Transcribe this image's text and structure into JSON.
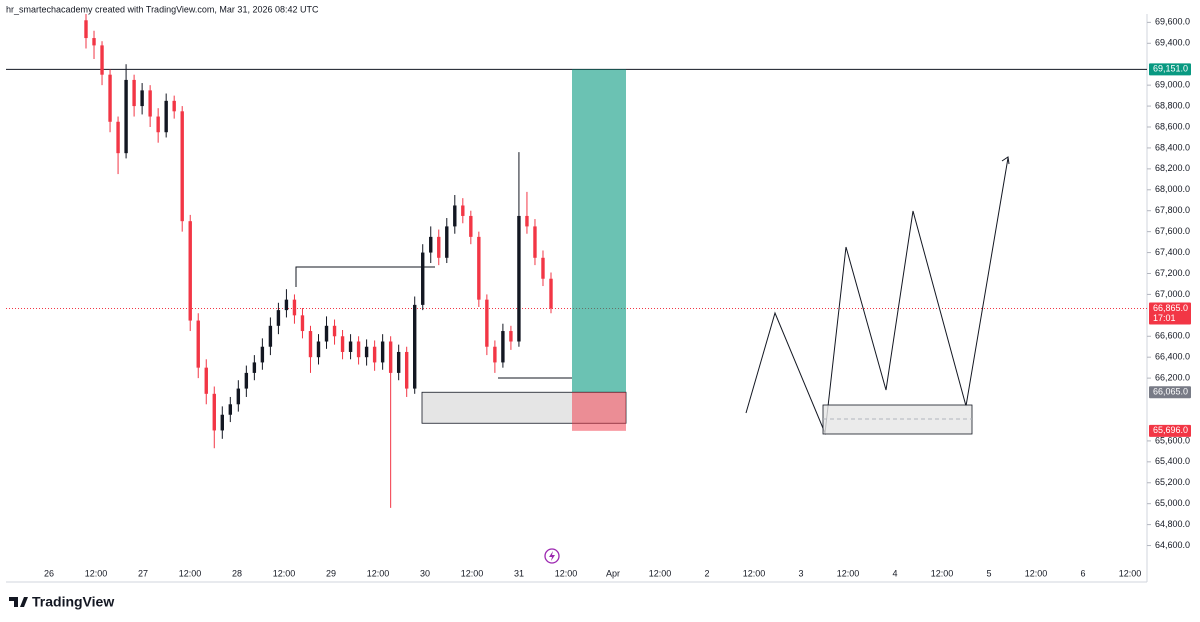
{
  "header": "hr_smartechacademy created with TradingView.com, Mar 31, 2026 08:42 UTC",
  "brand": "TradingView",
  "chart_data": {
    "type": "candlestick",
    "up_color": "#131722",
    "down_color": "#f23645",
    "ylim": [
      64500,
      69680
    ],
    "yticks": [
      {
        "value": 69600,
        "label": "69,600.0"
      },
      {
        "value": 69400,
        "label": "69,400.0"
      },
      {
        "value": 69000,
        "label": "69,000.0"
      },
      {
        "value": 68800,
        "label": "68,800.0"
      },
      {
        "value": 68600,
        "label": "68,600.0"
      },
      {
        "value": 68400,
        "label": "68,400.0"
      },
      {
        "value": 68200,
        "label": "68,200.0"
      },
      {
        "value": 68000,
        "label": "68,000.0"
      },
      {
        "value": 67800,
        "label": "67,800.0"
      },
      {
        "value": 67600,
        "label": "67,600.0"
      },
      {
        "value": 67400,
        "label": "67,400.0"
      },
      {
        "value": 67200,
        "label": "67,200.0"
      },
      {
        "value": 67000,
        "label": "67,000.0"
      },
      {
        "value": 66600,
        "label": "66,600.0"
      },
      {
        "value": 66400,
        "label": "66,400.0"
      },
      {
        "value": 66200,
        "label": "66,200.0"
      },
      {
        "value": 65600,
        "label": "65,600.0"
      },
      {
        "value": 65400,
        "label": "65,400.0"
      },
      {
        "value": 65200,
        "label": "65,200.0"
      },
      {
        "value": 65000,
        "label": "65,000.0"
      },
      {
        "value": 64800,
        "label": "64,800.0"
      },
      {
        "value": 64600,
        "label": "64,600.0"
      }
    ],
    "x_labels": [
      "26",
      "12:00",
      "27",
      "12:00",
      "28",
      "12:00",
      "29",
      "12:00",
      "30",
      "12:00",
      "31",
      "12:00",
      "Apr",
      "12:00",
      "2",
      "12:00",
      "3",
      "12:00",
      "4",
      "12:00",
      "5",
      "12:00",
      "6",
      "12:00"
    ],
    "resistance": {
      "value": 69151,
      "label": "69,151.0",
      "color": "#089981"
    },
    "last_price": {
      "value": 66865,
      "label": "66,865.0",
      "countdown": "17:01",
      "color": "#f23645"
    },
    "entry": {
      "value": 66065,
      "label": "66,065.0",
      "color": "#787b86"
    },
    "stop": {
      "value": 65696,
      "label": "65,696.0",
      "color": "#f23645"
    },
    "candles": [
      [
        69620,
        69680,
        69350,
        69450
      ],
      [
        69450,
        69520,
        69250,
        69380
      ],
      [
        69380,
        69420,
        69000,
        69100
      ],
      [
        69100,
        69150,
        68550,
        68650
      ],
      [
        68650,
        68700,
        68150,
        68350
      ],
      [
        68350,
        69200,
        68300,
        69050
      ],
      [
        69050,
        69100,
        68700,
        68800
      ],
      [
        68800,
        69020,
        68720,
        68950
      ],
      [
        68950,
        69000,
        68600,
        68700
      ],
      [
        68700,
        68780,
        68450,
        68550
      ],
      [
        68550,
        68920,
        68500,
        68850
      ],
      [
        68850,
        68900,
        68680,
        68750
      ],
      [
        68750,
        68800,
        67600,
        67700
      ],
      [
        67700,
        67760,
        66650,
        66750
      ],
      [
        66750,
        66820,
        66200,
        66300
      ],
      [
        66300,
        66380,
        65950,
        66050
      ],
      [
        66050,
        66120,
        65530,
        65700
      ],
      [
        65700,
        65930,
        65620,
        65850
      ],
      [
        65850,
        66020,
        65780,
        65950
      ],
      [
        65950,
        66180,
        65880,
        66100
      ],
      [
        66100,
        66320,
        66020,
        66250
      ],
      [
        66250,
        66420,
        66180,
        66350
      ],
      [
        66350,
        66580,
        66280,
        66500
      ],
      [
        66500,
        66780,
        66420,
        66700
      ],
      [
        66700,
        66920,
        66620,
        66850
      ],
      [
        66850,
        67050,
        66780,
        66950
      ],
      [
        66950,
        67000,
        66720,
        66800
      ],
      [
        66800,
        66870,
        66580,
        66650
      ],
      [
        66650,
        66700,
        66250,
        66400
      ],
      [
        66400,
        66620,
        66330,
        66550
      ],
      [
        66550,
        66790,
        66480,
        66700
      ],
      [
        66700,
        66760,
        66520,
        66600
      ],
      [
        66600,
        66660,
        66380,
        66450
      ],
      [
        66450,
        66620,
        66380,
        66550
      ],
      [
        66550,
        66600,
        66330,
        66400
      ],
      [
        66400,
        66570,
        66320,
        66500
      ],
      [
        66500,
        66560,
        66270,
        66350
      ],
      [
        66350,
        66620,
        66280,
        66550
      ],
      [
        66550,
        66600,
        64960,
        66250
      ],
      [
        66250,
        66520,
        66180,
        66450
      ],
      [
        66450,
        66500,
        66020,
        66100
      ],
      [
        66100,
        66980,
        66050,
        66900
      ],
      [
        66900,
        67480,
        66850,
        67400
      ],
      [
        67400,
        67650,
        67300,
        67550
      ],
      [
        67550,
        67620,
        67280,
        67350
      ],
      [
        67350,
        67730,
        67300,
        67650
      ],
      [
        67650,
        67950,
        67580,
        67850
      ],
      [
        67850,
        67920,
        67680,
        67750
      ],
      [
        67750,
        67800,
        67480,
        67550
      ],
      [
        67550,
        67600,
        66880,
        66950
      ],
      [
        66950,
        67000,
        66420,
        66500
      ],
      [
        66500,
        66560,
        66250,
        66350
      ],
      [
        66350,
        66720,
        66300,
        66650
      ],
      [
        66650,
        66700,
        66470,
        66550
      ],
      [
        66550,
        68360,
        66500,
        67750
      ],
      [
        67750,
        67980,
        67580,
        67650
      ],
      [
        67650,
        67720,
        67280,
        67350
      ],
      [
        67350,
        67420,
        67080,
        67150
      ],
      [
        67150,
        67210,
        66820,
        66865
      ]
    ]
  }
}
